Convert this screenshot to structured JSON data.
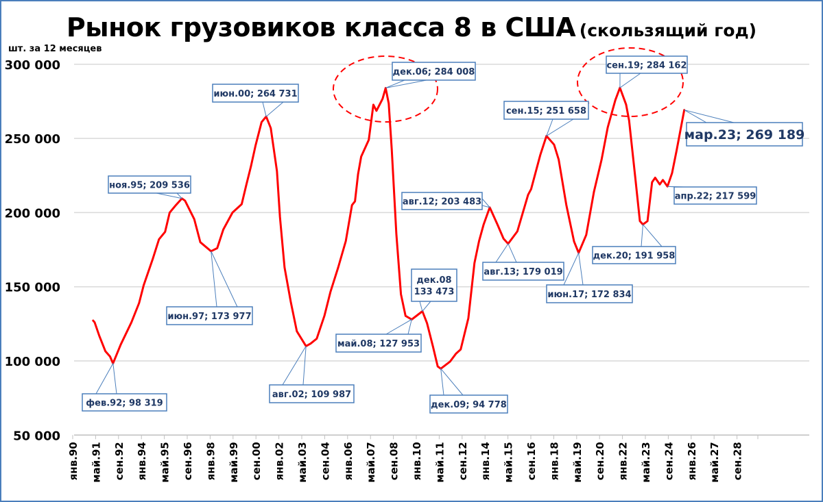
{
  "chart_data": {
    "type": "line",
    "title": "Рынок грузовиков класса 8 в США",
    "subtitle": "(скользящий год)",
    "ylabel": "шт. за 12 месяцев",
    "ylim": [
      50000,
      300000
    ],
    "xlim": [
      "1990-01",
      "2030-01"
    ],
    "grid": true,
    "y_ticks": [
      "50 000",
      "100 000",
      "150 000",
      "200 000",
      "250 000",
      "300 000"
    ],
    "y_tick_values": [
      50000,
      100000,
      150000,
      200000,
      250000,
      300000
    ],
    "x_ticks": [
      "янв.90",
      "май.91",
      "сен.92",
      "янв.94",
      "май.95",
      "сен.96",
      "янв.98",
      "май.99",
      "сен.00",
      "янв.02",
      "май.03",
      "сен.04",
      "янв.06",
      "май.07",
      "сен.08",
      "янв.10",
      "май.11",
      "сен.12",
      "янв.14",
      "май.15",
      "сен.16",
      "янв.18",
      "май.19",
      "сен.20",
      "янв.22",
      "май.23",
      "сен.24",
      "янв.26",
      "май.27",
      "сен.28"
    ],
    "series_color": "#ff0000",
    "points": [
      [
        "1991-01",
        127200
      ],
      [
        "1991-02",
        126000
      ],
      [
        "1991-05",
        117000
      ],
      [
        "1991-09",
        106500
      ],
      [
        "1991-12",
        103000
      ],
      [
        "1992-02",
        98319
      ],
      [
        "1992-07",
        111000
      ],
      [
        "1993-02",
        126000
      ],
      [
        "1993-07",
        139000
      ],
      [
        "1993-10",
        151000
      ],
      [
        "1994-04",
        169000
      ],
      [
        "1994-08",
        182000
      ],
      [
        "1994-12",
        187000
      ],
      [
        "1995-03",
        200000
      ],
      [
        "1995-07",
        205000
      ],
      [
        "1995-11",
        209536
      ],
      [
        "1996-01",
        208000
      ],
      [
        "1996-07",
        195600
      ],
      [
        "1996-11",
        180000
      ],
      [
        "1997-06",
        173977
      ],
      [
        "1997-10",
        176000
      ],
      [
        "1998-02",
        188600
      ],
      [
        "1998-08",
        200000
      ],
      [
        "1999-02",
        205700
      ],
      [
        "1999-05",
        218600
      ],
      [
        "1999-08",
        231000
      ],
      [
        "1999-11",
        245000
      ],
      [
        "2000-03",
        261000
      ],
      [
        "2000-06",
        264731
      ],
      [
        "2000-09",
        257000
      ],
      [
        "2001-01",
        228000
      ],
      [
        "2001-03",
        197000
      ],
      [
        "2001-06",
        163000
      ],
      [
        "2001-10",
        140000
      ],
      [
        "2002-02",
        120000
      ],
      [
        "2002-08",
        109987
      ],
      [
        "2002-11",
        111700
      ],
      [
        "2003-03",
        115000
      ],
      [
        "2003-08",
        130400
      ],
      [
        "2003-12",
        146700
      ],
      [
        "2004-05",
        163000
      ],
      [
        "2004-10",
        180800
      ],
      [
        "2005-02",
        205000
      ],
      [
        "2005-04",
        207600
      ],
      [
        "2005-06",
        226000
      ],
      [
        "2005-08",
        237700
      ],
      [
        "2006-01",
        249000
      ],
      [
        "2006-04",
        272700
      ],
      [
        "2006-06",
        268600
      ],
      [
        "2006-10",
        276700
      ],
      [
        "2006-12",
        284008
      ],
      [
        "2007-02",
        273500
      ],
      [
        "2007-04",
        242600
      ],
      [
        "2007-07",
        185700
      ],
      [
        "2007-10",
        145000
      ],
      [
        "2008-01",
        130400
      ],
      [
        "2008-05",
        127953
      ],
      [
        "2008-12",
        133473
      ],
      [
        "2009-03",
        125500
      ],
      [
        "2009-07",
        109300
      ],
      [
        "2009-10",
        96300
      ],
      [
        "2009-12",
        94778
      ],
      [
        "2010-06",
        99500
      ],
      [
        "2010-10",
        105000
      ],
      [
        "2011-01",
        107700
      ],
      [
        "2011-06",
        128800
      ],
      [
        "2011-10",
        166000
      ],
      [
        "2012-01",
        180800
      ],
      [
        "2012-04",
        192000
      ],
      [
        "2012-08",
        203483
      ],
      [
        "2013-01",
        192000
      ],
      [
        "2013-05",
        182400
      ],
      [
        "2013-08",
        179019
      ],
      [
        "2014-02",
        187300
      ],
      [
        "2014-09",
        212000
      ],
      [
        "2014-11",
        215800
      ],
      [
        "2015-05",
        238900
      ],
      [
        "2015-09",
        251658
      ],
      [
        "2016-02",
        245800
      ],
      [
        "2016-05",
        235800
      ],
      [
        "2016-10",
        205000
      ],
      [
        "2017-03",
        180500
      ],
      [
        "2017-06",
        172834
      ],
      [
        "2017-11",
        185000
      ],
      [
        "2018-04",
        214000
      ],
      [
        "2018-09",
        235800
      ],
      [
        "2019-01",
        257400
      ],
      [
        "2019-06",
        275800
      ],
      [
        "2019-09",
        284162
      ],
      [
        "2020-01",
        272800
      ],
      [
        "2020-03",
        262000
      ],
      [
        "2020-07",
        223500
      ],
      [
        "2020-10",
        194300
      ],
      [
        "2020-12",
        191958
      ],
      [
        "2021-03",
        194300
      ],
      [
        "2021-06",
        220500
      ],
      [
        "2021-08",
        223500
      ],
      [
        "2021-11",
        219000
      ],
      [
        "2022-01",
        222000
      ],
      [
        "2022-04",
        217599
      ],
      [
        "2022-07",
        226600
      ],
      [
        "2022-10",
        242000
      ],
      [
        "2023-03",
        269189
      ]
    ],
    "annotations": [
      {
        "lines": [
          "фев.92; 98 319"
        ],
        "date": "1992-02",
        "value": 98319
      },
      {
        "lines": [
          "ноя.95; 209 536"
        ],
        "date": "1995-11",
        "value": 209536
      },
      {
        "lines": [
          "июн.97; 173 977"
        ],
        "date": "1997-06",
        "value": 173977
      },
      {
        "lines": [
          "июн.00; 264 731"
        ],
        "date": "2000-06",
        "value": 264731
      },
      {
        "lines": [
          "авг.02; 109 987"
        ],
        "date": "2002-08",
        "value": 109987
      },
      {
        "lines": [
          "дек.06; 284 008"
        ],
        "date": "2006-12",
        "value": 284008
      },
      {
        "lines": [
          "май.08; 127 953"
        ],
        "date": "2008-05",
        "value": 127953
      },
      {
        "lines": [
          "дек.08",
          "133 473"
        ],
        "date": "2008-12",
        "value": 133473
      },
      {
        "lines": [
          "дек.09; 94 778"
        ],
        "date": "2009-12",
        "value": 94778
      },
      {
        "lines": [
          "авг.12; 203 483"
        ],
        "date": "2012-08",
        "value": 203483
      },
      {
        "lines": [
          "авг.13; 179 019"
        ],
        "date": "2013-08",
        "value": 179019
      },
      {
        "lines": [
          "сен.15; 251 658"
        ],
        "date": "2015-09",
        "value": 251658
      },
      {
        "lines": [
          "июн.17; 172 834"
        ],
        "date": "2017-06",
        "value": 172834
      },
      {
        "lines": [
          "сен.19; 284 162"
        ],
        "date": "2019-09",
        "value": 284162
      },
      {
        "lines": [
          "дек.20; 191 958"
        ],
        "date": "2020-12",
        "value": 191958
      },
      {
        "lines": [
          "апр.22; 217 599"
        ],
        "date": "2022-04",
        "value": 217599
      },
      {
        "lines": [
          "мар.23; 269 189"
        ],
        "date": "2023-03",
        "value": 269189,
        "emphasis": true
      }
    ],
    "highlighted_peaks": [
      "2006-12",
      "2019-09"
    ],
    "highlight_color": "#ff0000",
    "annotation_border_color": "#4a7ebb",
    "annotation_text_color": "#1f3864"
  }
}
